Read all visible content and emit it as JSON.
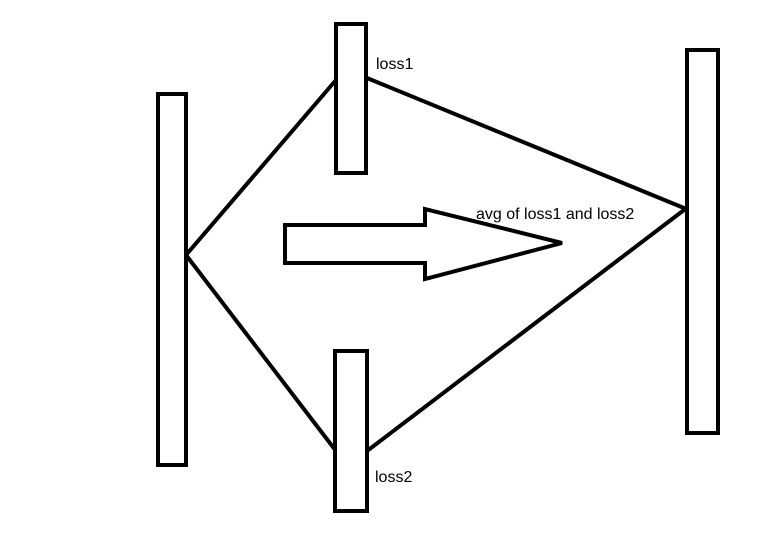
{
  "labels": {
    "loss1": "loss1",
    "loss2": "loss2",
    "avg": "avg of loss1 and loss2"
  },
  "colors": {
    "stroke": "#000000",
    "background": "#ffffff"
  }
}
